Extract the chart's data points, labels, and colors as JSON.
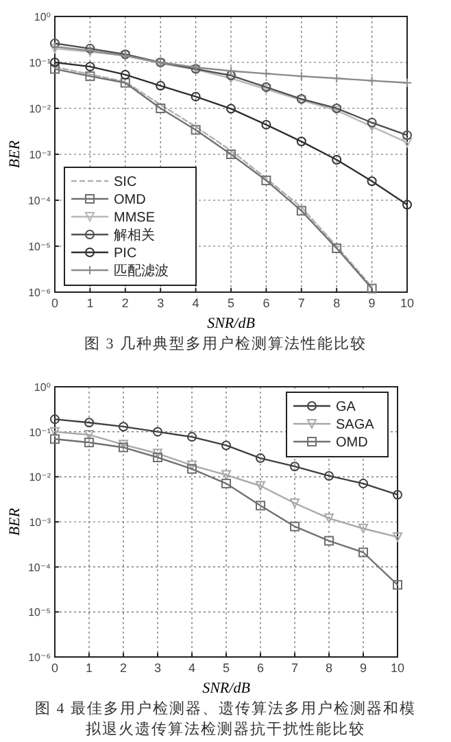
{
  "chart_data": [
    {
      "type": "line",
      "title": "图 3 几种典型多用户检测算法性能比较",
      "xlabel": "SNR/dB",
      "ylabel": "BER",
      "log": "y",
      "grid": true,
      "legend": "bottom left",
      "x": [
        0,
        1,
        2,
        3,
        4,
        5,
        6,
        7,
        8,
        9,
        10
      ],
      "xlim": [
        0,
        10
      ],
      "xticks": [
        0,
        1,
        2,
        3,
        4,
        5,
        6,
        7,
        8,
        9,
        10
      ],
      "ylim": [
        1e-06,
        1
      ],
      "yticks": [
        {
          "value": 1,
          "label": "10⁰"
        },
        {
          "value": 0.1,
          "label": "10⁻¹"
        },
        {
          "value": 0.01,
          "label": "10⁻²"
        },
        {
          "value": 0.001,
          "label": "10⁻³"
        },
        {
          "value": 0.0001,
          "label": "10⁻⁴"
        },
        {
          "value": 1e-05,
          "label": "10⁻⁵"
        },
        {
          "value": 1e-06,
          "label": "10⁻⁶"
        }
      ],
      "series": [
        {
          "name": "SIC",
          "color": "#b0b0b0",
          "marker": "none",
          "line_style": "dashed",
          "values": [
            0.08,
            0.055,
            0.038,
            0.012,
            0.004,
            0.0012,
            0.0003,
            7e-05,
            1e-05,
            1.3e-06,
            null
          ]
        },
        {
          "name": "OMD",
          "color": "#707070",
          "marker": "square",
          "values": [
            0.072,
            0.05,
            0.036,
            0.01,
            0.0034,
            0.001,
            0.00027,
            5.9e-05,
            9e-06,
            1.2e-06,
            null
          ]
        },
        {
          "name": "MMSE",
          "color": "#b8b8b8",
          "marker": "triangle",
          "values": [
            0.2,
            0.17,
            0.14,
            0.095,
            0.07,
            0.045,
            0.026,
            0.015,
            0.009,
            0.004,
            0.0018
          ]
        },
        {
          "name": "解相关",
          "color": "#505050",
          "marker": "circle",
          "values": [
            0.26,
            0.2,
            0.15,
            0.1,
            0.072,
            0.052,
            0.029,
            0.016,
            0.01,
            0.0049,
            0.0026
          ]
        },
        {
          "name": "PIC",
          "color": "#303030",
          "marker": "circle",
          "values": [
            0.1,
            0.081,
            0.054,
            0.031,
            0.018,
            0.0098,
            0.0044,
            0.0019,
            0.00076,
            0.00026,
            8e-05
          ]
        },
        {
          "name": "匹配滤波",
          "color": "#8a8a8a",
          "marker": "cross",
          "values": [
            0.22,
            0.18,
            0.14,
            0.1,
            0.078,
            0.065,
            0.057,
            0.05,
            0.045,
            0.04,
            0.036
          ]
        }
      ]
    },
    {
      "type": "line",
      "title": "图 4 最佳多用户检测器、遗传算法多用户检测器和模拟退火遗传算法检测器抗干扰性能比较",
      "xlabel": "SNR/dB",
      "ylabel": "BER",
      "log": "y",
      "grid": true,
      "legend": "top right",
      "x": [
        0,
        1,
        2,
        3,
        4,
        5,
        6,
        7,
        8,
        9,
        10
      ],
      "xlim": [
        0,
        10
      ],
      "xticks": [
        0,
        1,
        2,
        3,
        4,
        5,
        6,
        7,
        8,
        9,
        10
      ],
      "ylim": [
        1e-06,
        1
      ],
      "yticks": [
        {
          "value": 1,
          "label": "10⁰"
        },
        {
          "value": 0.1,
          "label": "10⁻¹"
        },
        {
          "value": 0.01,
          "label": "10⁻²"
        },
        {
          "value": 0.001,
          "label": "10⁻³"
        },
        {
          "value": 0.0001,
          "label": "10⁻⁴"
        },
        {
          "value": 1e-05,
          "label": "10⁻⁵"
        },
        {
          "value": 1e-06,
          "label": "10⁻⁶"
        }
      ],
      "series": [
        {
          "name": "GA",
          "color": "#404040",
          "marker": "circle",
          "values": [
            0.19,
            0.16,
            0.13,
            0.1,
            0.077,
            0.05,
            0.026,
            0.017,
            0.0105,
            0.0071,
            0.004
          ]
        },
        {
          "name": "SAGA",
          "color": "#a8a8a8",
          "marker": "triangle",
          "values": [
            0.1,
            0.086,
            0.052,
            0.033,
            0.018,
            0.011,
            0.0063,
            0.0026,
            0.0012,
            0.00071,
            0.00046
          ]
        },
        {
          "name": "OMD",
          "color": "#707070",
          "marker": "square",
          "values": [
            0.069,
            0.058,
            0.045,
            0.027,
            0.015,
            0.0071,
            0.0023,
            0.00079,
            0.00038,
            0.00021,
            4e-05
          ]
        }
      ]
    }
  ]
}
